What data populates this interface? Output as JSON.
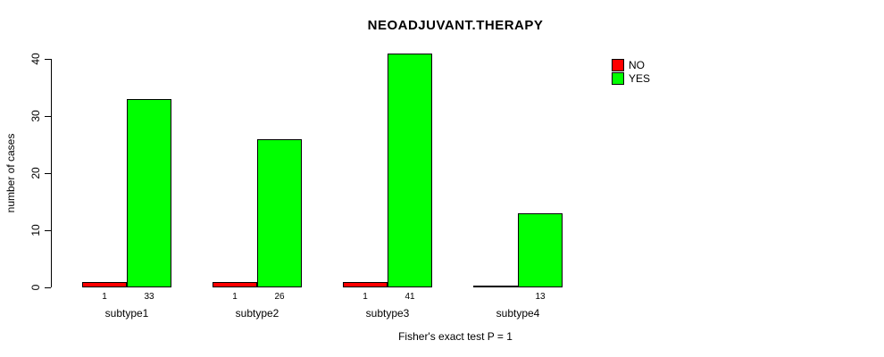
{
  "chart_data": {
    "type": "bar",
    "title": "NEOADJUVANT.THERAPY",
    "ylabel": "number of cases",
    "xlabel": "",
    "footer": "Fisher's exact test P = 1",
    "categories": [
      "subtype1",
      "subtype2",
      "subtype3",
      "subtype4"
    ],
    "series": [
      {
        "name": "NO",
        "color": "#FF0000",
        "values": [
          1,
          1,
          1,
          0
        ]
      },
      {
        "name": "YES",
        "color": "#00FF00",
        "values": [
          33,
          26,
          41,
          13
        ]
      }
    ],
    "bar_value_labels": [
      [
        "1",
        "33"
      ],
      [
        "1",
        "26"
      ],
      [
        "1",
        "41"
      ],
      [
        "",
        "13"
      ]
    ],
    "yticks": [
      0,
      10,
      20,
      30,
      40
    ],
    "ylim": [
      0,
      40
    ],
    "grid": false,
    "legend": {
      "position": "top-right"
    },
    "background_color": "#FFFFFF",
    "axis_color": "#000000"
  }
}
